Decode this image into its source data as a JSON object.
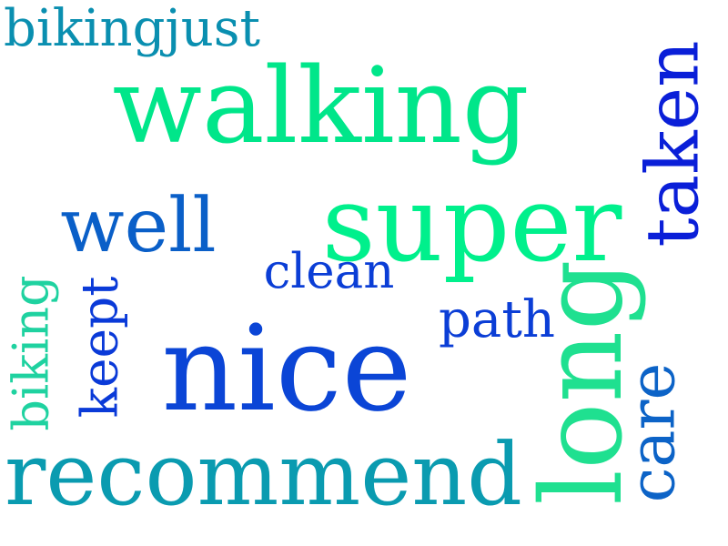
{
  "colors": {
    "background": "#ffffff",
    "green": "#00e68a",
    "mint": "#1fe0a0",
    "teal": "#0a9bb0",
    "royal_blue": "#0b45d6",
    "blue": "#0a5fc8",
    "deep_blue": "#0a1fd8",
    "cerulean": "#0c63c7"
  },
  "words": [
    {
      "id": "walking",
      "text": "walking",
      "color": "#00e68a"
    },
    {
      "id": "nice",
      "text": "nice",
      "color": "#0b45d6"
    },
    {
      "id": "recommend",
      "text": "recommend",
      "color": "#0a9bb0"
    },
    {
      "id": "super",
      "text": "super",
      "color": "#00f08c"
    },
    {
      "id": "long",
      "text": "long",
      "color": "#1fe090"
    },
    {
      "id": "care",
      "text": "care",
      "color": "#0c63c7"
    },
    {
      "id": "taken",
      "text": "taken",
      "color": "#0a1fd8"
    },
    {
      "id": "well",
      "text": "well",
      "color": "#0a5fc8"
    },
    {
      "id": "clean",
      "text": "clean",
      "color": "#0b3ed6"
    },
    {
      "id": "path",
      "text": "path",
      "color": "#0b3ed6"
    },
    {
      "id": "keept",
      "text": "keept",
      "color": "#0a3ad8"
    },
    {
      "id": "biking",
      "text": "biking",
      "color": "#1fd2a0"
    },
    {
      "id": "bikingjust",
      "text": "bikingjust",
      "color": "#0a8fb0"
    }
  ]
}
